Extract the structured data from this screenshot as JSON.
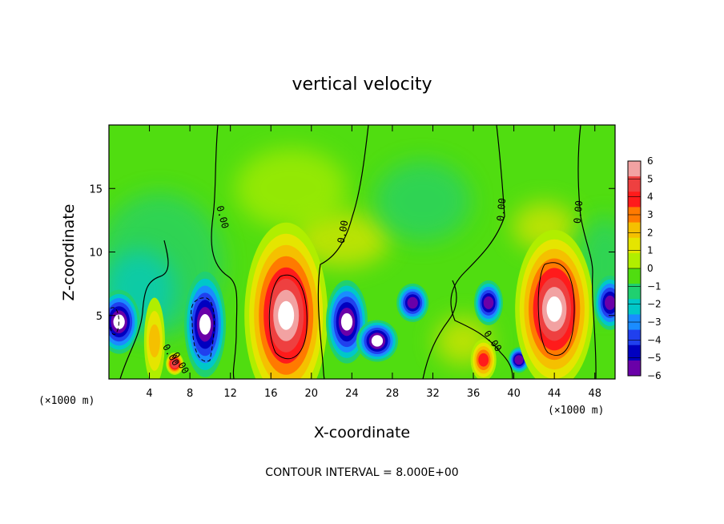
{
  "chart_data": {
    "type": "heatmap",
    "title": "vertical velocity",
    "xlabel": "X-coordinate",
    "ylabel": "Z-coordinate",
    "x_unit": "(×1000 m)",
    "x_unit_right": "(×1000 m)",
    "footer": "CONTOUR INTERVAL = 8.000E+00",
    "xlim": [
      0,
      50
    ],
    "ylim": [
      0,
      20
    ],
    "x_ticks": [
      "4",
      "8",
      "12",
      "16",
      "20",
      "24",
      "28",
      "32",
      "36",
      "40",
      "44",
      "48"
    ],
    "y_ticks": [
      "5",
      "10",
      "15"
    ],
    "colorbar": {
      "labels": [
        "6",
        "5",
        "4",
        "3",
        "2",
        "1",
        "0",
        "−1",
        "−2",
        "−3",
        "−4",
        "−5",
        "−6"
      ],
      "range": [
        -6,
        6
      ],
      "colors": [
        "#f2a2a2",
        "#ee4040",
        "#ff1b1b",
        "#ff7a00",
        "#f5c000",
        "#e5e500",
        "#b0ee00",
        "#50dd10",
        "#20d070",
        "#00c8c8",
        "#1a8cff",
        "#2040ee",
        "#0000c0",
        "#6a00a8"
      ],
      "clip_color": "#ffffff"
    },
    "contour_label": "0.00",
    "contour_labels_count": 7,
    "features": [
      {
        "x": 1.0,
        "z": 4.5,
        "w": -8,
        "note": "downdraft"
      },
      {
        "x": 4.5,
        "z": 3.0,
        "w": 3
      },
      {
        "x": 6.5,
        "z": 1.2,
        "w": 6
      },
      {
        "x": 9.5,
        "z": 4.3,
        "w": -8
      },
      {
        "x": 17.5,
        "z": 5.0,
        "w": 14,
        "note": "main updraft"
      },
      {
        "x": 23.5,
        "z": 4.5,
        "w": -8
      },
      {
        "x": 26.5,
        "z": 3.0,
        "w": -7
      },
      {
        "x": 30.0,
        "z": 6.0,
        "w": -6
      },
      {
        "x": 37.0,
        "z": 1.5,
        "w": 5
      },
      {
        "x": 37.5,
        "z": 6.0,
        "w": -6
      },
      {
        "x": 40.5,
        "z": 1.5,
        "w": -6
      },
      {
        "x": 44.0,
        "z": 5.5,
        "w": 12,
        "note": "updraft"
      },
      {
        "x": 49.5,
        "z": 6.0,
        "w": -6
      }
    ]
  }
}
